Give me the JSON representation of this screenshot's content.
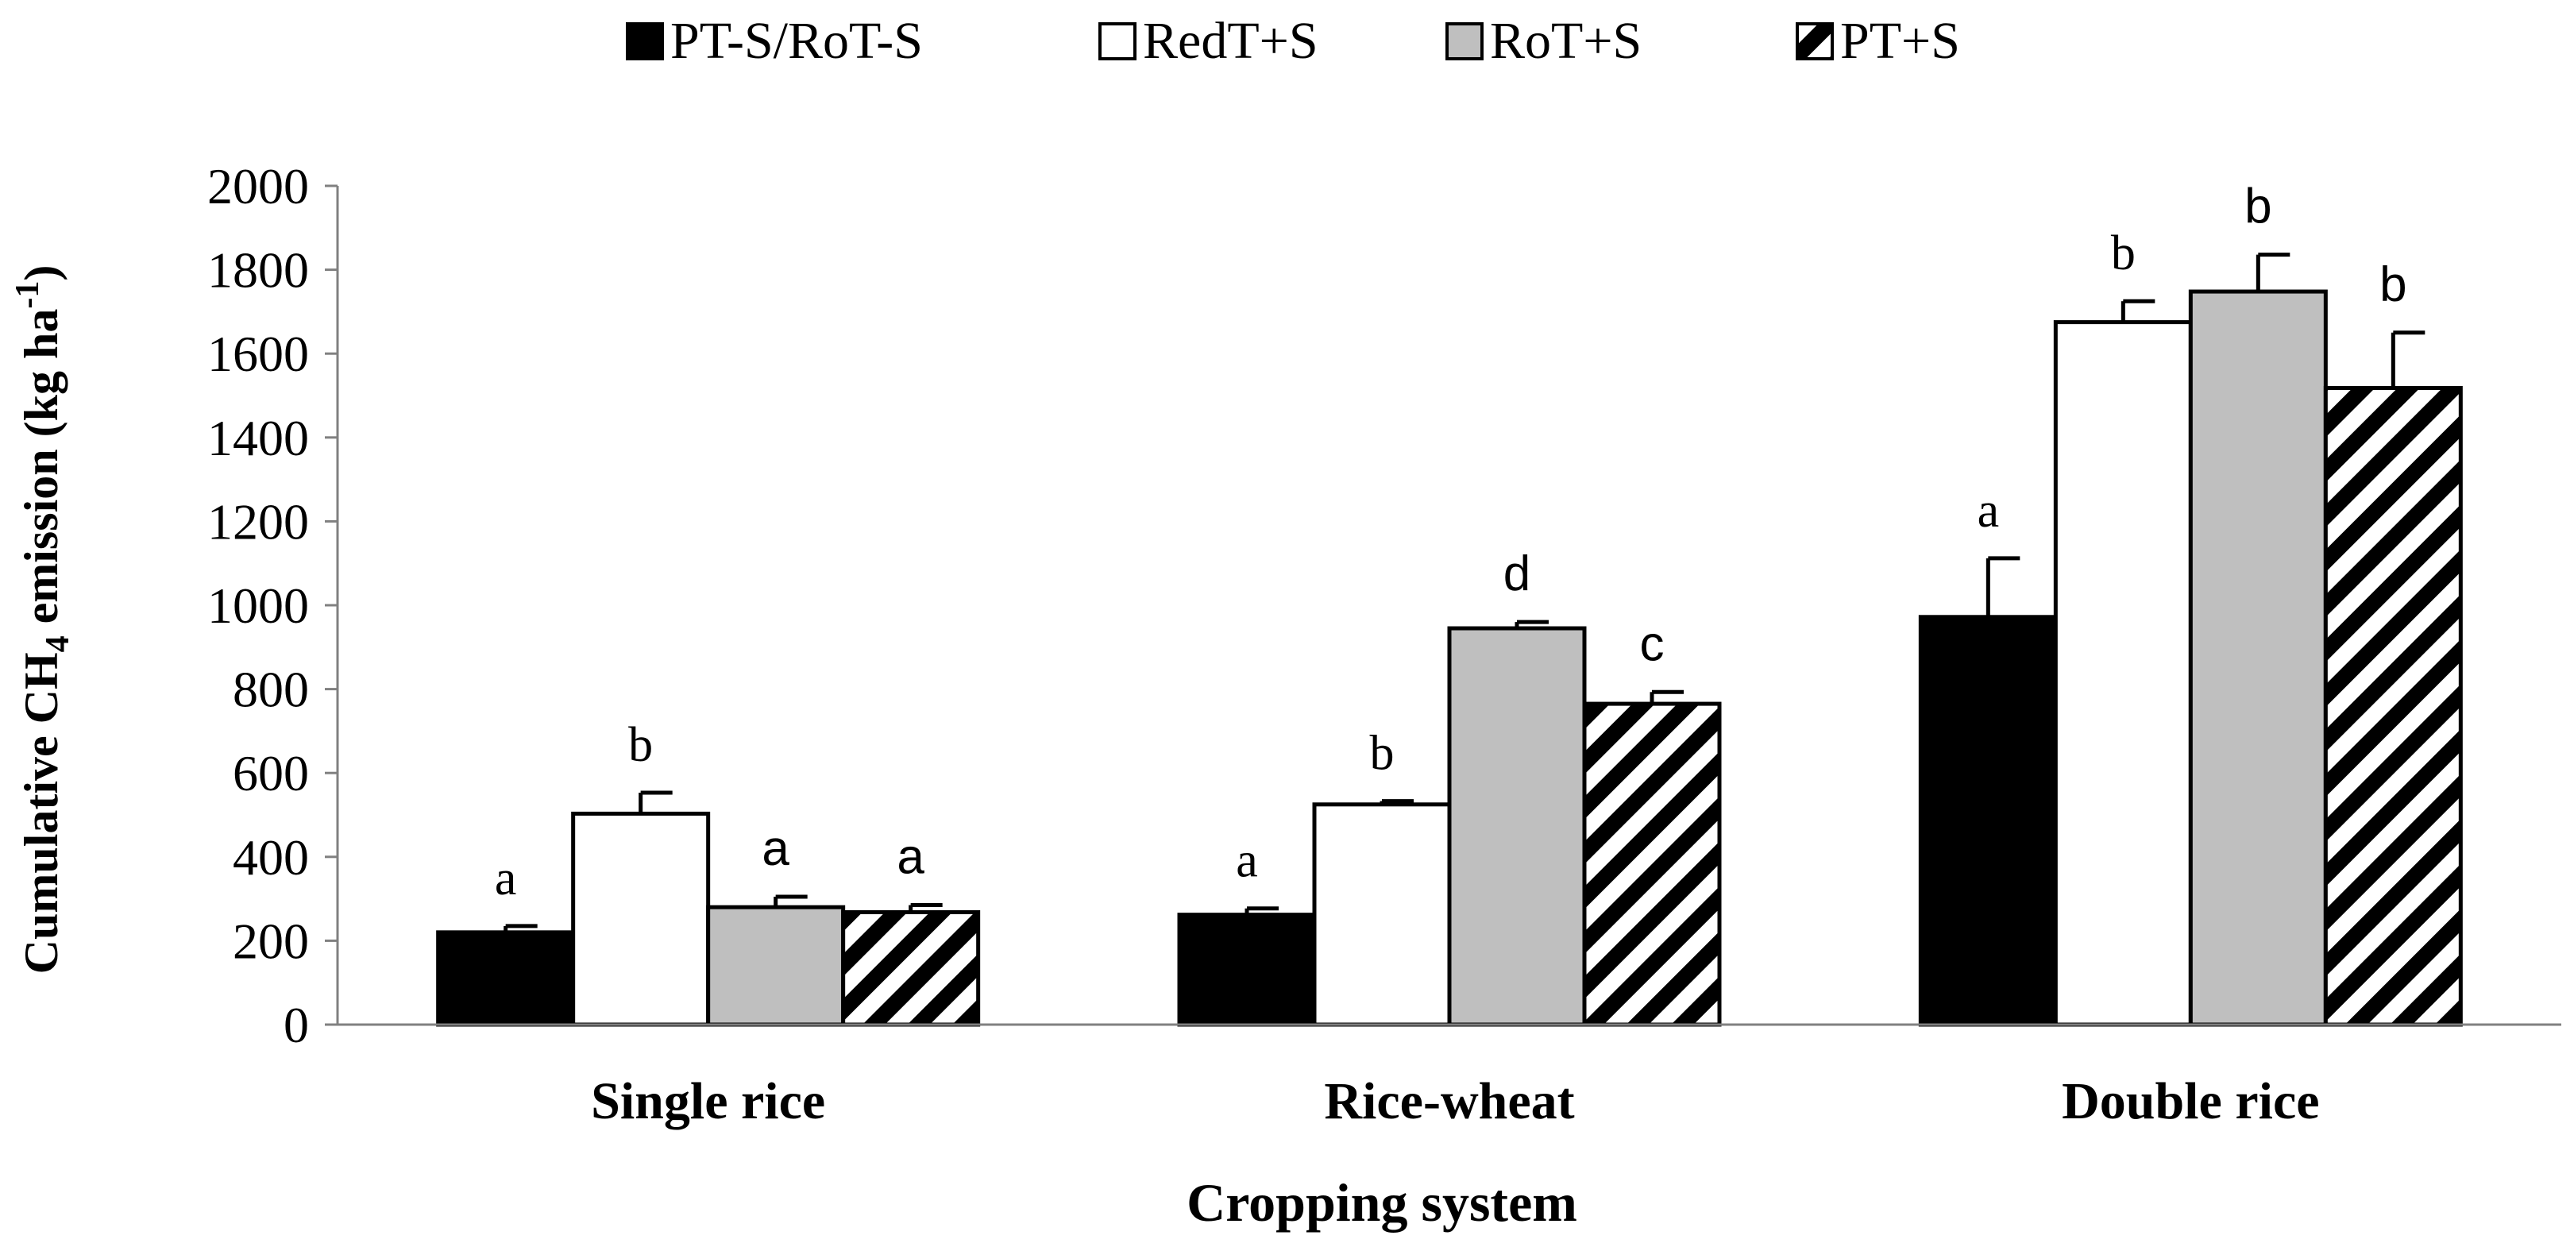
{
  "chart_data": {
    "type": "bar",
    "xlabel": "Cropping system",
    "ylabel_prefix": "Cumulative CH",
    "ylabel_sub": "4",
    "ylabel_mid": " emission (kg ha",
    "ylabel_sup": "-1",
    "ylabel_suffix": ")",
    "ylim": [
      0,
      2000
    ],
    "yticks": [
      "0",
      "200",
      "400",
      "600",
      "800",
      "1000",
      "1200",
      "1400",
      "1600",
      "1800",
      "2000"
    ],
    "grid": false,
    "legend_position": "top",
    "categories": [
      "Single rice",
      "Rice-wheat",
      "Double rice"
    ],
    "series": [
      {
        "name": "PT-S/RoT-S",
        "style": "black",
        "values": [
          220,
          262,
          972
        ],
        "errors": [
          15,
          15,
          140
        ],
        "letters": [
          "a",
          "a",
          "a"
        ]
      },
      {
        "name": "RedT+S",
        "style": "white",
        "values": [
          503,
          525,
          1675
        ],
        "errors": [
          50,
          8,
          50
        ],
        "letters": [
          "b",
          "b",
          "b"
        ]
      },
      {
        "name": "RoT+S",
        "style": "gray",
        "values": [
          280,
          945,
          1748
        ],
        "errors": [
          25,
          15,
          88
        ],
        "letters": [
          "a",
          "d",
          "b"
        ]
      },
      {
        "name": "PT+S",
        "style": "hatch",
        "values": [
          268,
          765,
          1518
        ],
        "errors": [
          17,
          28,
          132
        ],
        "letters": [
          "a",
          "c",
          "b"
        ]
      }
    ],
    "colors": {
      "black": "#000000",
      "white": "#ffffff",
      "gray": "#bfbfbf",
      "axis": "#808080",
      "text": "#000000"
    }
  }
}
